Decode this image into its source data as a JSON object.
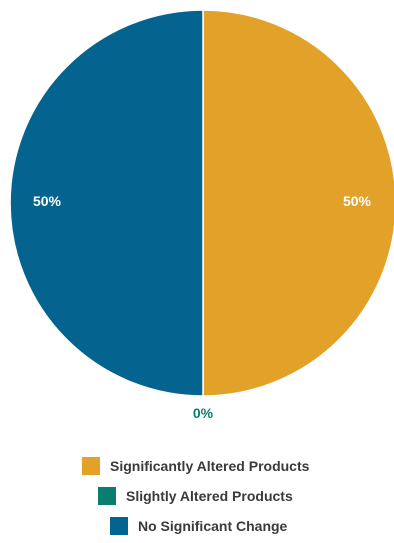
{
  "chart_data": {
    "type": "pie",
    "series": [
      {
        "name": "Significantly Altered Products",
        "value": 50,
        "label": "50%",
        "color": "#E2A128"
      },
      {
        "name": "Slightly Altered Products",
        "value": 0,
        "label": "0%",
        "color": "#0A7E6E"
      },
      {
        "name": "No Significant Change",
        "value": 50,
        "label": "50%",
        "color": "#05648F"
      }
    ],
    "start_angle": "top",
    "direction": "clockwise",
    "legend_position": "bottom",
    "title": ""
  }
}
